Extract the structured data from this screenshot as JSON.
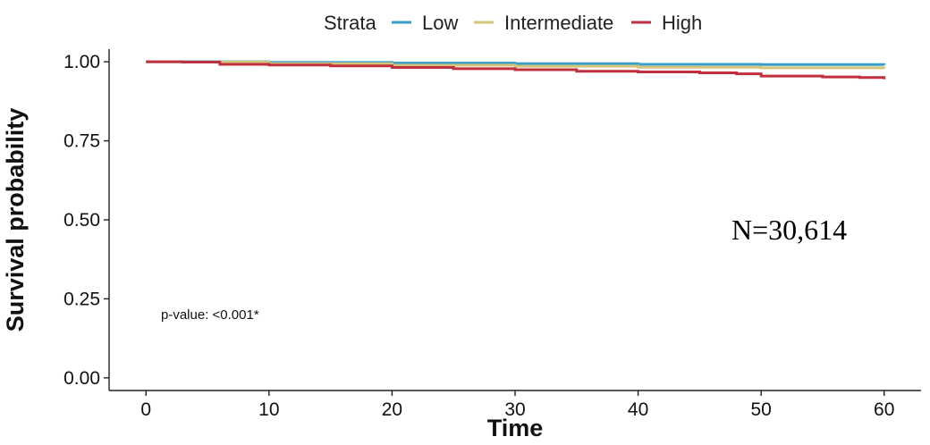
{
  "chart_data": {
    "type": "line",
    "xlabel": "Time",
    "ylabel": "Survival probability",
    "xlim": [
      -3,
      63
    ],
    "ylim": [
      -0.04,
      1.04
    ],
    "x_ticks": [
      0,
      10,
      20,
      30,
      40,
      50,
      60
    ],
    "y_ticks": [
      0,
      0.25,
      0.5,
      0.75,
      1.0
    ],
    "x_tick_labels": [
      "0",
      "10",
      "20",
      "30",
      "40",
      "50",
      "60"
    ],
    "y_tick_labels": [
      "0.00",
      "0.25",
      "0.50",
      "0.75",
      "1.00"
    ],
    "grid": false,
    "legend": {
      "title": "Strata",
      "placement": "top",
      "entries": [
        "Low",
        "Intermediate",
        "High"
      ]
    },
    "series": [
      {
        "name": "Low",
        "color": "#3a9fc8",
        "x": [
          0,
          3,
          10,
          20,
          30,
          40,
          50,
          60
        ],
        "y": [
          1.0,
          1.0,
          0.998,
          0.996,
          0.994,
          0.992,
          0.991,
          0.99
        ]
      },
      {
        "name": "Intermediate",
        "color": "#d4c47a",
        "x": [
          0,
          3,
          10,
          20,
          30,
          40,
          50,
          60
        ],
        "y": [
          1.0,
          0.999,
          0.994,
          0.989,
          0.986,
          0.983,
          0.981,
          0.979
        ]
      },
      {
        "name": "High",
        "color": "#c0303f",
        "x": [
          0,
          3,
          6,
          10,
          15,
          20,
          25,
          30,
          35,
          40,
          45,
          48,
          50,
          55,
          58,
          60
        ],
        "y": [
          1.0,
          0.999,
          0.992,
          0.99,
          0.987,
          0.982,
          0.978,
          0.975,
          0.97,
          0.968,
          0.965,
          0.962,
          0.955,
          0.952,
          0.95,
          0.945
        ]
      }
    ],
    "annotations": {
      "p_value": "p-value: <0.001*",
      "n_label": "N=30,614"
    }
  }
}
